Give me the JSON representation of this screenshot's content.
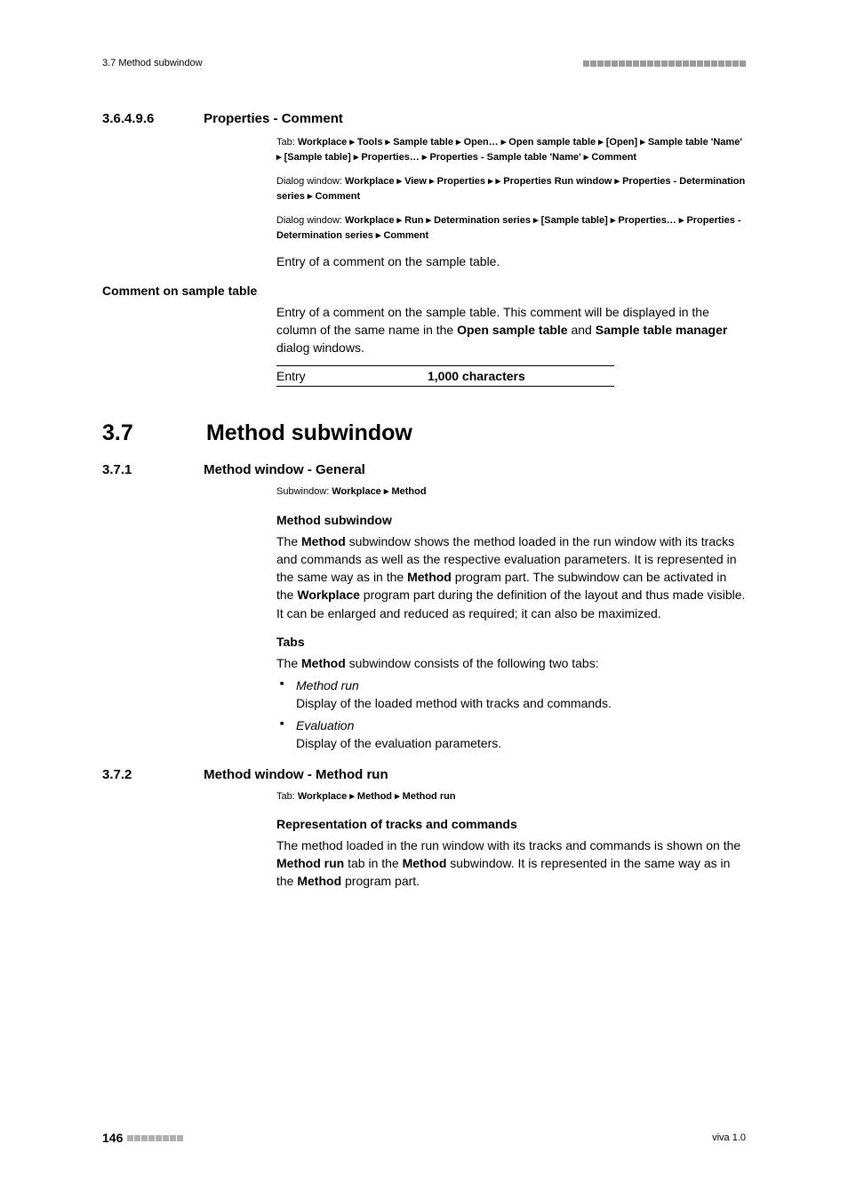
{
  "header": {
    "left": "3.7 Method subwindow",
    "dash_count": 23,
    "dash_color": "#9a9a9a"
  },
  "section_36496": {
    "num": "3.6.4.9.6",
    "title": "Properties - Comment",
    "path1_prefix": "Tab: ",
    "path1": "Workplace ▸ Tools ▸ Sample table ▸ Open… ▸ Open sample table ▸ [Open] ▸ Sample table 'Name' ▸ [Sample table] ▸ Properties… ▸ Properties - Sample table 'Name' ▸ Comment",
    "path2_prefix": "Dialog window: ",
    "path2": "Workplace ▸ View ▸ Properties ▸  ▸ Properties Run window ▸ Properties - Determination series ▸ Comment",
    "path3_prefix": "Dialog window: ",
    "path3": "Workplace ▸ Run ▸ Determination series ▸ [Sample table] ▸ Properties… ▸ Properties - Determination series ▸ Comment",
    "intro": "Entry of a comment on the sample table.",
    "field_heading": "Comment on sample table",
    "field_body_1": "Entry of a comment on the sample table. This comment will be displayed in the column of the same name in the ",
    "field_body_b1": "Open sample table",
    "field_body_2": " and ",
    "field_body_b2": "Sample table manager",
    "field_body_3": " dialog windows.",
    "entry_label": "Entry",
    "entry_value": "1,000 characters"
  },
  "section_37": {
    "num": "3.7",
    "title": "Method subwindow"
  },
  "section_371": {
    "num": "3.7.1",
    "title": "Method window - General",
    "path_prefix": "Subwindow: ",
    "path": "Workplace ▸ Method",
    "h_subwindow": "Method subwindow",
    "p_sub_1": "The ",
    "p_sub_b1": "Method",
    "p_sub_2": " subwindow shows the method loaded in the run window with its tracks and commands as well as the respective evaluation parameters. It is represented in the same way as in the ",
    "p_sub_b2": "Method",
    "p_sub_3": " program part. The subwindow can be activated in the ",
    "p_sub_b3": "Workplace",
    "p_sub_4": " program part during the definition of the layout and thus made visible. It can be enlarged and reduced as required; it can also be maximized.",
    "h_tabs": "Tabs",
    "p_tabs_1": "The ",
    "p_tabs_b1": "Method",
    "p_tabs_2": " subwindow consists of the following two tabs:",
    "tab1_name": "Method run",
    "tab1_desc": "Display of the loaded method with tracks and commands.",
    "tab2_name": "Evaluation",
    "tab2_desc": "Display of the evaluation parameters."
  },
  "section_372": {
    "num": "3.7.2",
    "title": "Method window - Method run",
    "path_prefix": "Tab: ",
    "path": "Workplace ▸ Method ▸ Method run",
    "h_rep": "Representation of tracks and commands",
    "p_rep_1": "The method loaded in the run window with its tracks and commands is shown on the ",
    "p_rep_b1": "Method run",
    "p_rep_2": " tab in the ",
    "p_rep_b2": "Method",
    "p_rep_3": " subwindow. It is represented in the same way as in the ",
    "p_rep_b3": "Method",
    "p_rep_4": " program part."
  },
  "footer": {
    "page": "146",
    "dash_count": 8,
    "dash_color": "#b0b0b0",
    "right": "viva 1.0"
  }
}
